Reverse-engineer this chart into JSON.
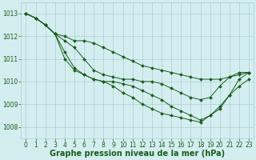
{
  "background_color": "#d4eef0",
  "grid_color": "#aacdd0",
  "line_color": "#1a5c1a",
  "marker_color": "#1a5c1a",
  "xlabel": "Graphe pression niveau de la mer (hPa)",
  "xlabel_fontsize": 7,
  "ylim": [
    1007.5,
    1013.5
  ],
  "xlim": [
    -0.5,
    23.5
  ],
  "yticks": [
    1008,
    1009,
    1010,
    1011,
    1012,
    1013
  ],
  "xticks": [
    0,
    1,
    2,
    3,
    4,
    5,
    6,
    7,
    8,
    9,
    10,
    11,
    12,
    13,
    14,
    15,
    16,
    17,
    18,
    19,
    20,
    21,
    22,
    23
  ],
  "series": [
    [
      1013.0,
      1012.8,
      1012.5,
      1012.1,
      1012.0,
      1011.8,
      1011.8,
      1011.7,
      1011.5,
      1011.3,
      1011.1,
      1010.9,
      1010.7,
      1010.6,
      1010.5,
      1010.4,
      1010.3,
      1010.2,
      1010.1,
      1010.1,
      1010.1,
      1010.2,
      1010.3,
      1010.4
    ],
    [
      1013.0,
      1012.8,
      1012.5,
      1012.1,
      1011.8,
      1011.5,
      1011.0,
      1010.5,
      1010.3,
      1010.2,
      1010.1,
      1010.1,
      1010.0,
      1010.0,
      1009.9,
      1009.7,
      1009.5,
      1009.3,
      1009.2,
      1009.3,
      1009.8,
      1010.2,
      1010.4,
      1010.4
    ],
    [
      1013.0,
      1012.8,
      1012.5,
      1012.1,
      1011.3,
      1010.6,
      1010.3,
      1010.1,
      1010.0,
      1010.0,
      1009.9,
      1009.8,
      1009.6,
      1009.4,
      1009.2,
      1008.9,
      1008.7,
      1008.5,
      1008.3,
      1008.5,
      1008.9,
      1009.4,
      1009.8,
      1010.1
    ],
    [
      1013.0,
      1012.8,
      1012.5,
      1012.1,
      1011.0,
      1010.5,
      1010.3,
      1010.1,
      1010.0,
      1009.8,
      1009.5,
      1009.3,
      1009.0,
      1008.8,
      1008.6,
      1008.5,
      1008.4,
      1008.3,
      1008.2,
      1008.5,
      1008.8,
      1009.4,
      1010.1,
      1010.4
    ]
  ],
  "tick_fontsize": 5.5,
  "tick_color": "#1a5c1a",
  "marker_size": 2.0,
  "linewidth": 0.7
}
